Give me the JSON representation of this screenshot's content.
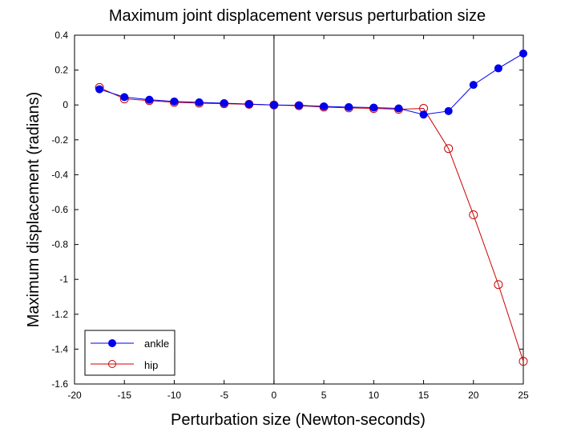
{
  "chart_data": {
    "type": "line",
    "title": "Maximum joint displacement versus perturbation size",
    "xlabel": "Perturbation size (Newton-seconds)",
    "ylabel": "Maximum displacement (radians)",
    "xlim": [
      -20,
      25
    ],
    "ylim": [
      -1.6,
      0.4
    ],
    "xticks": [
      -20,
      -15,
      -10,
      -5,
      0,
      5,
      10,
      15,
      20,
      25
    ],
    "yticks": [
      0.4,
      0.2,
      0,
      -0.2,
      -0.4,
      -0.6,
      -0.8,
      -1,
      -1.2,
      -1.4,
      -1.6
    ],
    "xtick_labels": [
      "-20",
      "-15",
      "-10",
      "-5",
      "0",
      "5",
      "10",
      "15",
      "20",
      "25"
    ],
    "ytick_labels": [
      "0.4",
      "0.2",
      "0",
      "-0.2",
      "-0.4",
      "-0.6",
      "-0.8",
      "-1",
      "-1.2",
      "-1.4",
      "-1.6"
    ],
    "vertical_line_x": 0,
    "legend_position": "bottom-left",
    "x": [
      -17.5,
      -15,
      -12.5,
      -10,
      -7.5,
      -5,
      -2.5,
      0,
      2.5,
      5,
      7.5,
      10,
      12.5,
      15,
      17.5,
      20,
      22.5,
      25
    ],
    "series": [
      {
        "name": "ankle",
        "color": "#0000ee",
        "marker": "filled-circle",
        "values": [
          0.09,
          0.045,
          0.03,
          0.02,
          0.015,
          0.01,
          0.005,
          0.0,
          -0.002,
          -0.008,
          -0.012,
          -0.015,
          -0.02,
          -0.055,
          -0.035,
          0.115,
          0.21,
          0.295
        ]
      },
      {
        "name": "hip",
        "color": "#cc0000",
        "marker": "open-circle",
        "values": [
          0.1,
          0.035,
          0.025,
          0.015,
          0.01,
          0.007,
          0.004,
          0.0,
          -0.004,
          -0.012,
          -0.017,
          -0.02,
          -0.025,
          -0.02,
          -0.25,
          -0.63,
          -1.03,
          -1.47
        ]
      }
    ]
  }
}
